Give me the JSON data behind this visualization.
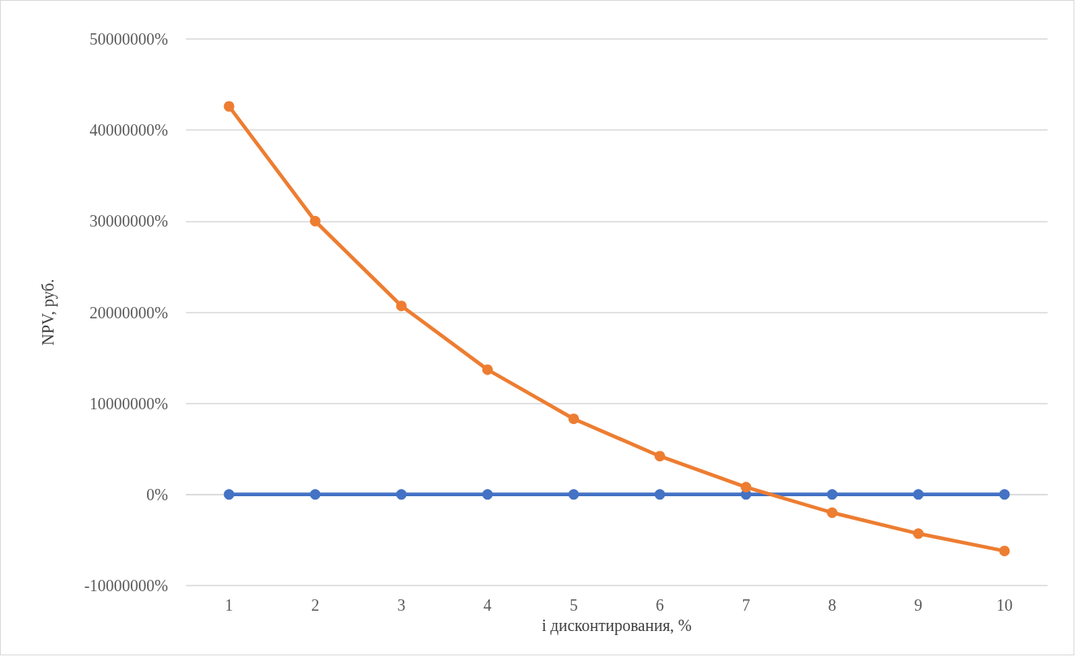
{
  "chart_data": {
    "type": "line",
    "xlabel": "і дисконтирования, %",
    "ylabel": "NPV, руб.",
    "categories": [
      "1",
      "2",
      "3",
      "4",
      "5",
      "6",
      "7",
      "8",
      "9",
      "10"
    ],
    "series": [
      {
        "color": "#4472c4",
        "values": [
          0,
          0,
          0,
          0,
          0,
          0,
          0,
          0,
          0,
          0
        ]
      },
      {
        "color": "#ed7d31",
        "values": [
          42600000,
          30000000,
          20700000,
          13700000,
          8300000,
          4200000,
          800000,
          -2000000,
          -4300000,
          -6200000
        ]
      }
    ],
    "ylim": [
      -10000000,
      50000000
    ],
    "yticks": [
      {
        "value": -10000000,
        "label": "-10000000%"
      },
      {
        "value": 0,
        "label": "0%"
      },
      {
        "value": 10000000,
        "label": "10000000%"
      },
      {
        "value": 20000000,
        "label": "20000000%"
      },
      {
        "value": 30000000,
        "label": "30000000%"
      },
      {
        "value": 40000000,
        "label": "40000000%"
      },
      {
        "value": 50000000,
        "label": "50000000%"
      }
    ],
    "grid": "y",
    "marker": "circle",
    "line_style": "solid"
  }
}
